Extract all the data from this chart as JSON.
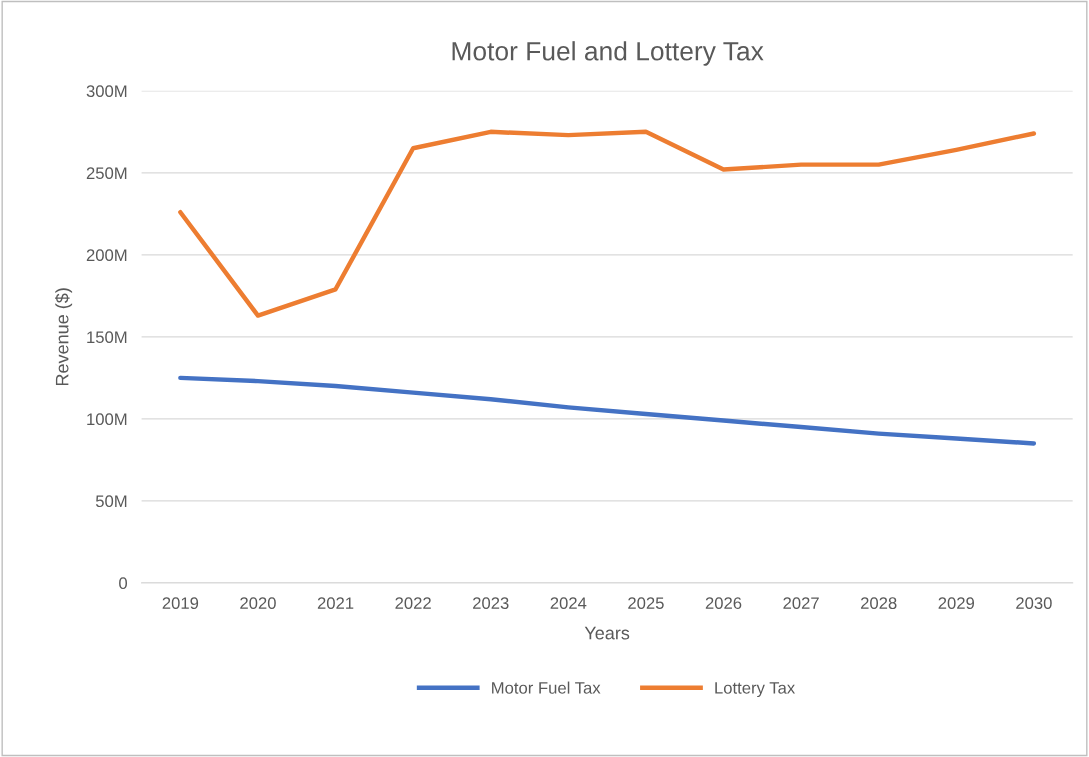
{
  "chart_data": {
    "type": "line",
    "title": "Motor Fuel and Lottery Tax",
    "xlabel": "Years",
    "ylabel": "Revenue ($)",
    "categories": [
      "2019",
      "2020",
      "2021",
      "2022",
      "2023",
      "2024",
      "2025",
      "2026",
      "2027",
      "2028",
      "2029",
      "2030"
    ],
    "series": [
      {
        "name": "Motor Fuel Tax",
        "color": "#4472c4",
        "values": [
          125,
          123,
          120,
          116,
          112,
          107,
          103,
          99,
          95,
          91,
          88,
          85
        ]
      },
      {
        "name": "Lottery Tax",
        "color": "#ed7d31",
        "values": [
          226,
          163,
          179,
          265,
          275,
          273,
          275,
          252,
          255,
          255,
          264,
          274
        ]
      }
    ],
    "ylim": [
      0,
      300
    ],
    "yticks": [
      0,
      {
        "value": 50,
        "label": "50M"
      },
      {
        "value": 100,
        "label": "100M"
      },
      {
        "value": 150,
        "label": "150M"
      },
      {
        "value": 200,
        "label": "200M"
      },
      {
        "value": 250,
        "label": "250M"
      },
      {
        "value": 300,
        "label": "300M"
      }
    ],
    "grid": "y",
    "legend": "bottom",
    "marker": "none",
    "line_style": "solid"
  }
}
